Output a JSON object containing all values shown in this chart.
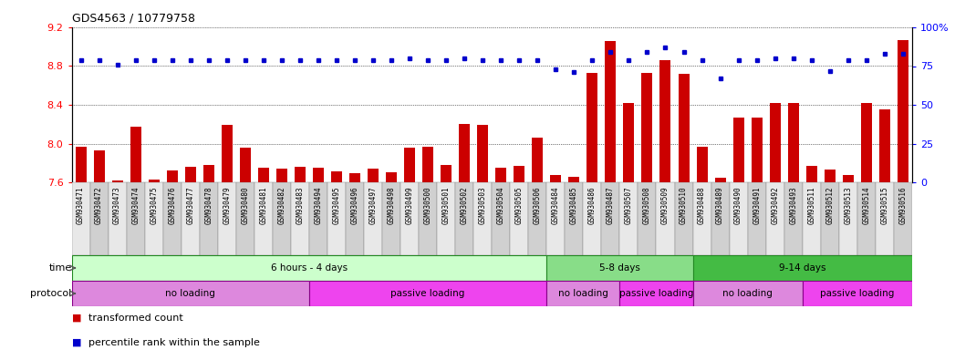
{
  "title": "GDS4563 / 10779758",
  "samples": [
    "GSM930471",
    "GSM930472",
    "GSM930473",
    "GSM930474",
    "GSM930475",
    "GSM930476",
    "GSM930477",
    "GSM930478",
    "GSM930479",
    "GSM930480",
    "GSM930481",
    "GSM930482",
    "GSM930483",
    "GSM930494",
    "GSM930495",
    "GSM930496",
    "GSM930497",
    "GSM930498",
    "GSM930499",
    "GSM930500",
    "GSM930501",
    "GSM930502",
    "GSM930503",
    "GSM930504",
    "GSM930505",
    "GSM930506",
    "GSM930484",
    "GSM930485",
    "GSM930486",
    "GSM930487",
    "GSM930507",
    "GSM930508",
    "GSM930509",
    "GSM930510",
    "GSM930488",
    "GSM930489",
    "GSM930490",
    "GSM930491",
    "GSM930492",
    "GSM930493",
    "GSM930511",
    "GSM930512",
    "GSM930513",
    "GSM930514",
    "GSM930515",
    "GSM930516"
  ],
  "bar_values": [
    7.97,
    7.93,
    7.62,
    8.17,
    7.63,
    7.72,
    7.76,
    7.78,
    8.19,
    7.96,
    7.75,
    7.74,
    7.76,
    7.75,
    7.71,
    7.69,
    7.74,
    7.7,
    7.96,
    7.97,
    7.78,
    8.2,
    8.19,
    7.75,
    7.77,
    8.06,
    7.68,
    7.66,
    8.73,
    9.06,
    8.42,
    8.73,
    8.86,
    8.72,
    7.97,
    7.65,
    8.27,
    8.27,
    8.42,
    8.42,
    7.77,
    7.73,
    7.68,
    8.42,
    8.35,
    9.07
  ],
  "percentile_values": [
    79,
    79,
    76,
    79,
    79,
    79,
    79,
    79,
    79,
    79,
    79,
    79,
    79,
    79,
    79,
    79,
    79,
    79,
    80,
    79,
    79,
    80,
    79,
    79,
    79,
    79,
    73,
    71,
    79,
    84,
    79,
    84,
    87,
    84,
    79,
    67,
    79,
    79,
    80,
    80,
    79,
    72,
    79,
    79,
    83,
    83
  ],
  "ylim_left": [
    7.6,
    9.2
  ],
  "ylim_right": [
    0,
    100
  ],
  "yticks_left": [
    7.6,
    8.0,
    8.4,
    8.8,
    9.2
  ],
  "yticks_right": [
    0,
    25,
    50,
    75,
    100
  ],
  "bar_color": "#cc0000",
  "dot_color": "#0000cc",
  "time_groups": [
    {
      "label": "6 hours - 4 days",
      "start": 0,
      "end": 26,
      "color": "#ccffcc"
    },
    {
      "label": "5-8 days",
      "start": 26,
      "end": 34,
      "color": "#88dd88"
    },
    {
      "label": "9-14 days",
      "start": 34,
      "end": 46,
      "color": "#44bb44"
    }
  ],
  "protocol_groups": [
    {
      "label": "no loading",
      "start": 0,
      "end": 13,
      "color": "#dd88dd"
    },
    {
      "label": "passive loading",
      "start": 13,
      "end": 26,
      "color": "#ee44ee"
    },
    {
      "label": "no loading",
      "start": 26,
      "end": 30,
      "color": "#dd88dd"
    },
    {
      "label": "passive loading",
      "start": 30,
      "end": 34,
      "color": "#ee44ee"
    },
    {
      "label": "no loading",
      "start": 34,
      "end": 40,
      "color": "#dd88dd"
    },
    {
      "label": "passive loading",
      "start": 40,
      "end": 46,
      "color": "#ee44ee"
    }
  ],
  "legend_items": [
    {
      "label": "transformed count",
      "color": "#cc0000"
    },
    {
      "label": "percentile rank within the sample",
      "color": "#0000cc"
    }
  ],
  "time_label": "time",
  "protocol_label": "protocol",
  "time_color_light": "#ccffcc",
  "time_color_mid": "#88dd88",
  "time_color_dark": "#44bb44",
  "proto_color_light": "#dd88dd",
  "proto_color_bright": "#ee44ee"
}
